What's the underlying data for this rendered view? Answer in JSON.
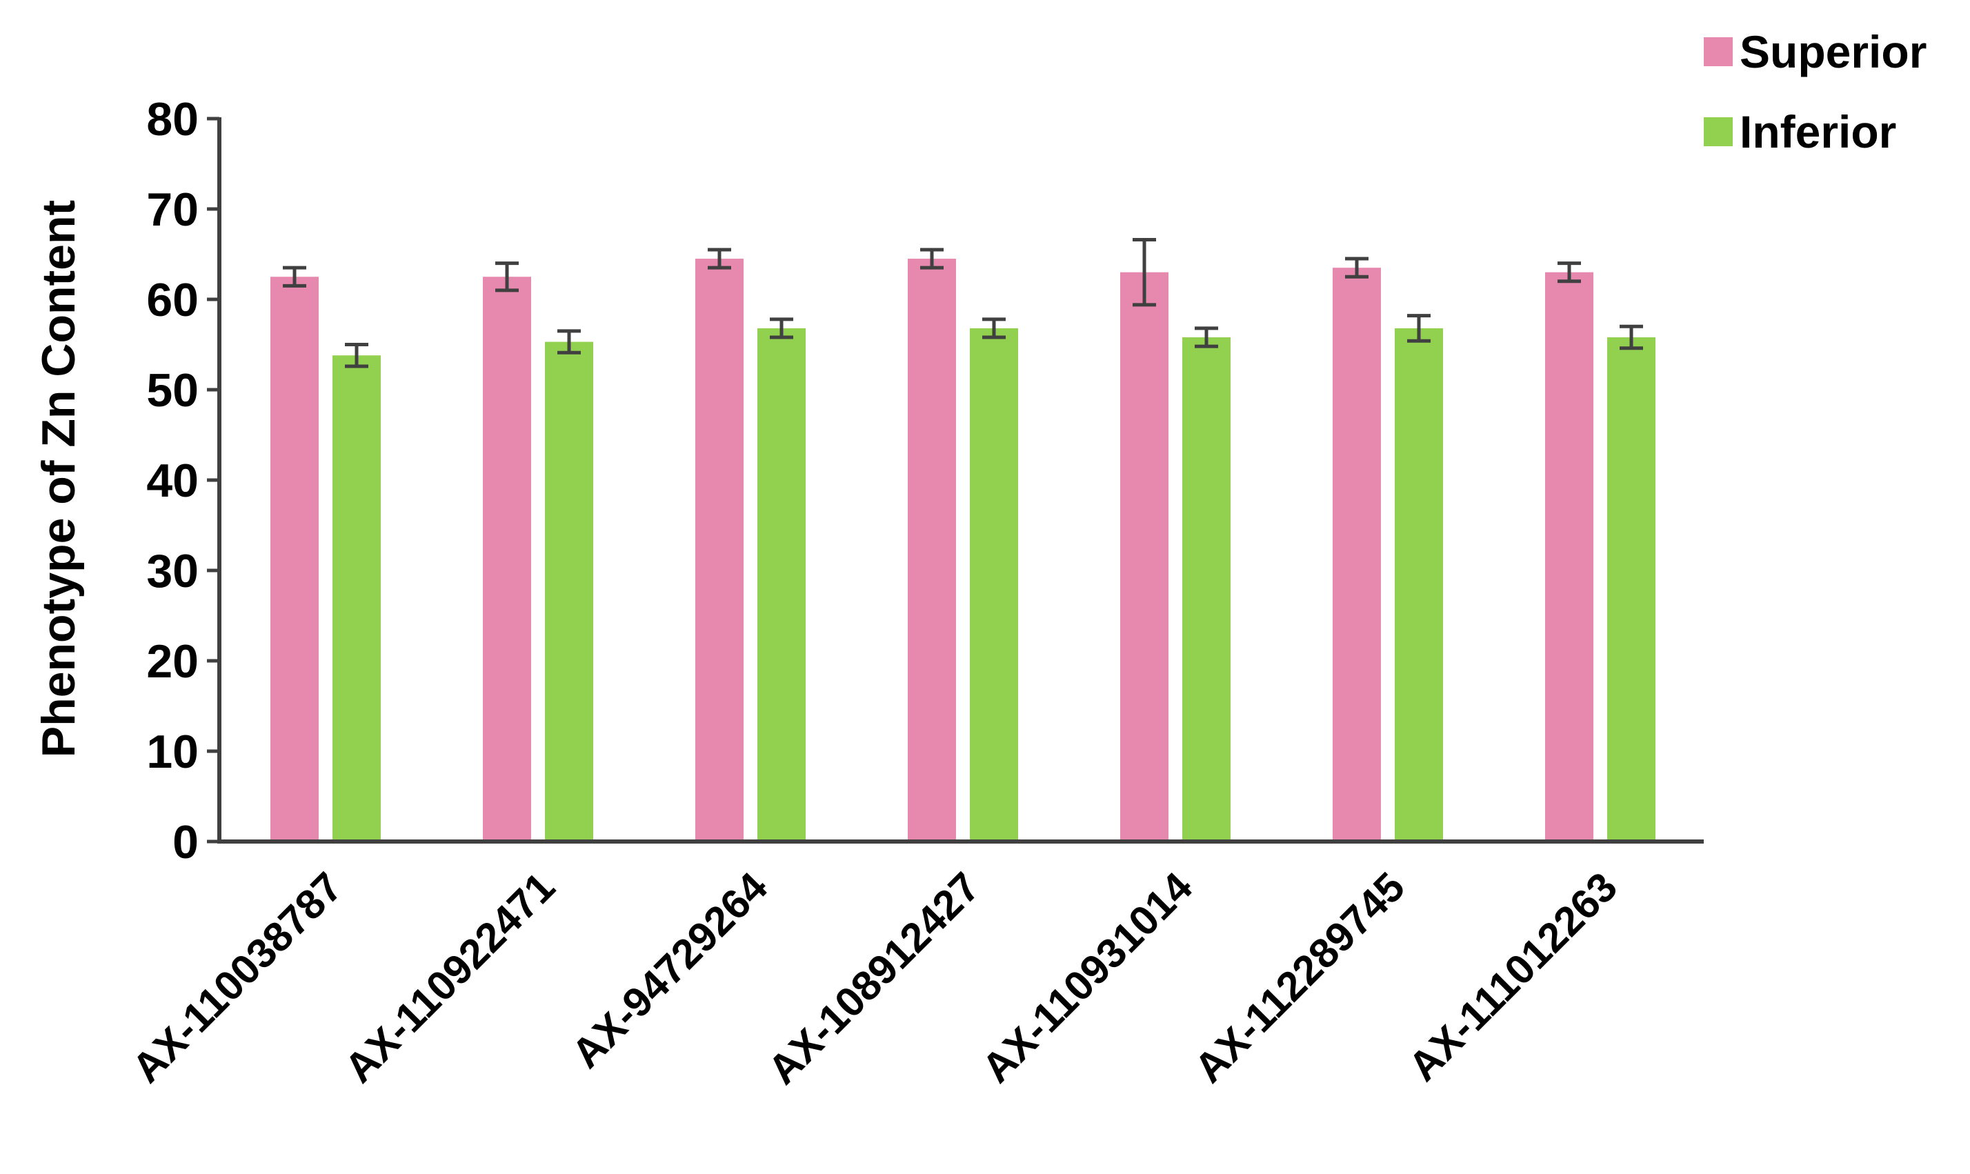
{
  "chart_data": {
    "type": "bar",
    "title": "",
    "xlabel": "",
    "ylabel": "Phenotype of  Zn Content",
    "ylim": [
      0,
      80
    ],
    "yticks": [
      0,
      10,
      20,
      30,
      40,
      50,
      60,
      70,
      80
    ],
    "grid": false,
    "legend": "top-right",
    "categories": [
      "AX-110038787",
      "AX-110922471",
      "AX-94729264",
      "AX-108912427",
      "AX-110931014",
      "AX-112289745",
      "AX-111012263"
    ],
    "series": [
      {
        "name": "Superior",
        "color": "#E788AE",
        "values": [
          62.5,
          62.5,
          64.5,
          64.5,
          63.0,
          63.5,
          63.0
        ],
        "errors": [
          1.0,
          1.5,
          1.0,
          1.0,
          3.6,
          1.0,
          1.0
        ]
      },
      {
        "name": "Inferior",
        "color": "#92D050",
        "values": [
          53.8,
          55.3,
          56.8,
          56.8,
          55.8,
          56.8,
          55.8
        ],
        "errors": [
          1.2,
          1.2,
          1.0,
          1.0,
          1.0,
          1.4,
          1.2
        ]
      }
    ]
  }
}
